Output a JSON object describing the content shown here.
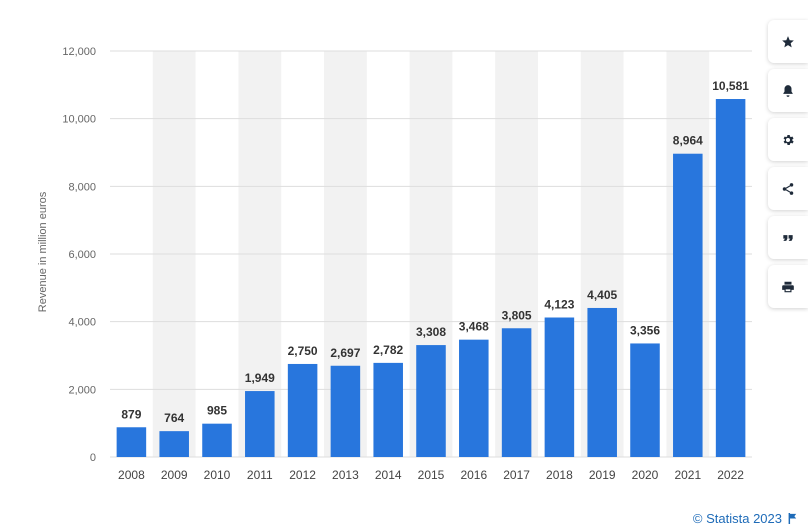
{
  "chart_data": {
    "type": "bar",
    "title": "",
    "xlabel": "",
    "ylabel": "Revenue in million euros",
    "categories": [
      "2008",
      "2009",
      "2010",
      "2011",
      "2012",
      "2013",
      "2014",
      "2015",
      "2016",
      "2017",
      "2018",
      "2019",
      "2020",
      "2021",
      "2022"
    ],
    "values": [
      879,
      764,
      985,
      1949,
      2750,
      2697,
      2782,
      3308,
      3468,
      3805,
      4123,
      4405,
      3356,
      8964,
      10581
    ],
    "value_labels": [
      "879",
      "764",
      "985",
      "1,949",
      "2,750",
      "2,697",
      "2,782",
      "3,308",
      "3,468",
      "3,805",
      "4,123",
      "4,405",
      "3,356",
      "8,964",
      "10,581"
    ],
    "ylim": [
      0,
      12000
    ],
    "y_ticks": [
      0,
      2000,
      4000,
      6000,
      8000,
      10000,
      12000
    ],
    "y_tick_labels": [
      "0",
      "2,000",
      "4,000",
      "6,000",
      "8,000",
      "10,000",
      "12,000"
    ],
    "grid": true,
    "bar_color": "#2876dd",
    "band_color": "#f2f2f2"
  },
  "credit": {
    "text": "© Statista 2023"
  },
  "tools": [
    {
      "name": "favorite",
      "icon": "star-icon"
    },
    {
      "name": "notifications",
      "icon": "bell-icon"
    },
    {
      "name": "settings",
      "icon": "gear-icon"
    },
    {
      "name": "share",
      "icon": "share-icon"
    },
    {
      "name": "cite",
      "icon": "quote-icon"
    },
    {
      "name": "print",
      "icon": "print-icon"
    }
  ],
  "colors": {
    "accent": "#1e6bb8",
    "tool_icon": "#1f2b3a"
  }
}
